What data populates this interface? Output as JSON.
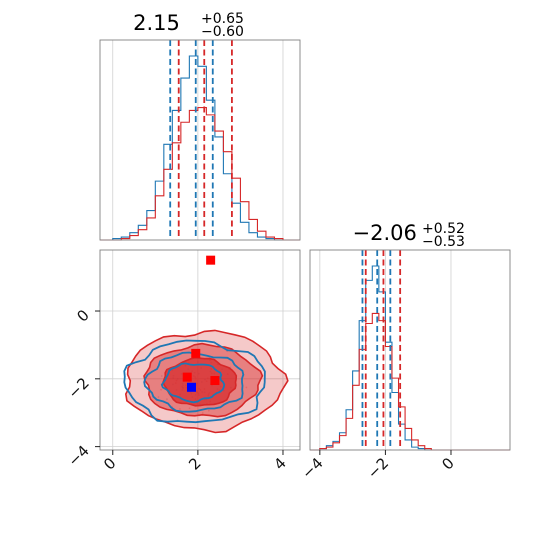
{
  "chart_data": {
    "type": "corner",
    "grid": true,
    "colors": {
      "blue": "#1f77b4",
      "red": "#d62728",
      "marker_blue": "#0000ff",
      "marker_red": "#ff0000"
    },
    "title_param_0": {
      "value": "2.15",
      "upper": "+0.65",
      "lower": "−0.60"
    },
    "title_param_1": {
      "value": "−2.06",
      "upper": "+0.52",
      "lower": "−0.53"
    },
    "x0_range": [
      -0.3,
      4.4
    ],
    "x1_range": [
      -4.3,
      1.8
    ],
    "y1_range": [
      -4.1,
      1.8
    ],
    "x0_ticks": [
      "0",
      "2",
      "4"
    ],
    "x0_tick_values": [
      0,
      2,
      4
    ],
    "x1_ticks": [
      "−4",
      "−2",
      "0"
    ],
    "x1_tick_values": [
      -4,
      -2,
      0
    ],
    "y1_ticks": [
      "0",
      "−2",
      "−4"
    ],
    "y1_tick_values": [
      0,
      -2,
      -4
    ],
    "hist0": {
      "bins": [
        -0.3,
        0.0,
        0.2,
        0.4,
        0.6,
        0.8,
        1.0,
        1.2,
        1.4,
        1.6,
        1.8,
        2.0,
        2.2,
        2.4,
        2.6,
        2.8,
        3.0,
        3.2,
        3.4,
        3.6,
        3.8,
        4.0,
        4.4
      ],
      "blue": [
        0,
        1,
        2,
        5,
        10,
        20,
        40,
        65,
        88,
        110,
        125,
        118,
        95,
        70,
        45,
        25,
        12,
        5,
        2,
        1,
        0,
        0
      ],
      "red": [
        0,
        0,
        1,
        3,
        7,
        15,
        30,
        48,
        66,
        80,
        88,
        90,
        85,
        74,
        60,
        42,
        26,
        14,
        6,
        2,
        1,
        0
      ],
      "quantiles_blue": [
        1.35,
        1.95,
        2.35
      ],
      "quantiles_red": [
        1.55,
        2.15,
        2.8
      ]
    },
    "hist1": {
      "bins": [
        -4.3,
        -4.0,
        -3.8,
        -3.6,
        -3.4,
        -3.2,
        -3.0,
        -2.8,
        -2.6,
        -2.4,
        -2.2,
        -2.0,
        -1.8,
        -1.6,
        -1.4,
        -1.2,
        -1.0,
        -0.8,
        -0.6,
        1.8
      ],
      "blue": [
        0,
        1,
        3,
        6,
        12,
        28,
        55,
        90,
        118,
        128,
        110,
        75,
        40,
        18,
        7,
        2,
        1,
        0,
        0
      ],
      "red": [
        0,
        1,
        2,
        5,
        10,
        22,
        45,
        70,
        88,
        95,
        90,
        72,
        50,
        30,
        15,
        7,
        3,
        1,
        0
      ],
      "quantiles_blue": [
        -2.7,
        -2.25,
        -1.85
      ],
      "quantiles_red": [
        -2.6,
        -2.06,
        -1.55
      ]
    },
    "joint": {
      "red_contours": [
        {
          "cx": 2.15,
          "cy": -2.06,
          "rx": 1.85,
          "ry": 1.45,
          "opacity": 0.25
        },
        {
          "cx": 2.1,
          "cy": -2.06,
          "rx": 1.35,
          "ry": 1.05,
          "opacity": 0.45
        },
        {
          "cx": 2.05,
          "cy": -2.1,
          "rx": 0.85,
          "ry": 0.7,
          "opacity": 0.7
        }
      ],
      "blue_contours": [
        {
          "cx": 1.95,
          "cy": -2.1,
          "rx": 1.65,
          "ry": 1.2
        },
        {
          "cx": 1.95,
          "cy": -2.1,
          "rx": 1.15,
          "ry": 0.85
        },
        {
          "cx": 1.9,
          "cy": -2.1,
          "rx": 0.7,
          "ry": 0.55
        }
      ],
      "markers_red": [
        [
          2.3,
          1.5
        ],
        [
          1.95,
          -1.25
        ],
        [
          1.75,
          -1.95
        ],
        [
          2.4,
          -2.05
        ]
      ],
      "marker_blue": [
        1.85,
        -2.25
      ]
    }
  }
}
